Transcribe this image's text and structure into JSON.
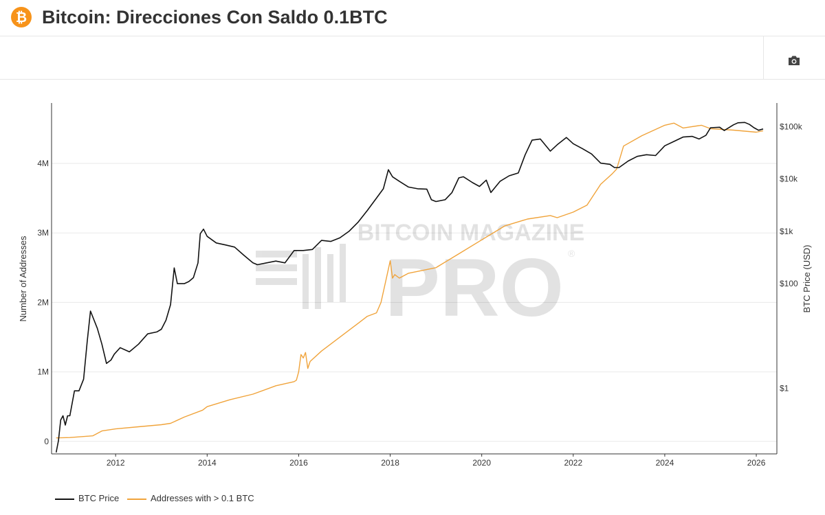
{
  "header": {
    "logo_glyph": "₿",
    "title": "Bitcoin: Direcciones Con Saldo 0.1BTC"
  },
  "toolbar": {
    "camera_icon": "camera-icon"
  },
  "watermark": {
    "line1": "BITCOIN MAGAZINE",
    "line2": "PRO",
    "mark": "®"
  },
  "colors": {
    "btc_price": "#111111",
    "addresses": "#f0a33a",
    "brand": "#f7931a"
  },
  "chart_data": {
    "type": "line",
    "title": "Bitcoin: Direcciones Con Saldo 0.1BTC",
    "xlabel": "",
    "ylabel_left": "Number of Addresses",
    "ylabel_right": "BTC Price (USD)",
    "xlim": [
      2010.6,
      2026.45
    ],
    "ylim_left": [
      -180000,
      4870000
    ],
    "ylim_right_log10": [
      -1.25,
      5.45
    ],
    "x_ticks": [
      2012,
      2014,
      2016,
      2018,
      2020,
      2022,
      2024,
      2026
    ],
    "x_tick_labels": [
      "2012",
      "2014",
      "2016",
      "2018",
      "2020",
      "2022",
      "2024",
      "2026"
    ],
    "y_left_ticks": [
      0,
      1000000,
      2000000,
      3000000,
      4000000
    ],
    "y_left_tick_labels": [
      "0",
      "1M",
      "2M",
      "3M",
      "4M"
    ],
    "y_right_ticks_log10": [
      0,
      2,
      3,
      4,
      5
    ],
    "y_right_tick_labels": [
      "$1",
      "$100",
      "$1k",
      "$10k",
      "$100k"
    ],
    "grid": true,
    "legend_position": "bottom-left",
    "series": [
      {
        "name": "BTC Price",
        "axis": "right",
        "x": [
          2010.7,
          2010.75,
          2010.8,
          2010.85,
          2010.9,
          2010.95,
          2011.0,
          2011.1,
          2011.2,
          2011.3,
          2011.38,
          2011.45,
          2011.6,
          2011.7,
          2011.8,
          2011.9,
          2011.97,
          2012.1,
          2012.3,
          2012.5,
          2012.7,
          2012.9,
          2013.0,
          2013.1,
          2013.2,
          2013.28,
          2013.35,
          2013.5,
          2013.6,
          2013.7,
          2013.8,
          2013.85,
          2013.92,
          2014.0,
          2014.2,
          2014.4,
          2014.6,
          2014.8,
          2015.0,
          2015.1,
          2015.3,
          2015.5,
          2015.7,
          2015.9,
          2016.1,
          2016.3,
          2016.5,
          2016.7,
          2016.9,
          2017.1,
          2017.3,
          2017.5,
          2017.7,
          2017.85,
          2017.96,
          2018.05,
          2018.2,
          2018.4,
          2018.6,
          2018.8,
          2018.9,
          2019.0,
          2019.2,
          2019.35,
          2019.5,
          2019.6,
          2019.8,
          2019.95,
          2020.1,
          2020.2,
          2020.4,
          2020.6,
          2020.8,
          2020.95,
          2021.1,
          2021.28,
          2021.5,
          2021.65,
          2021.85,
          2022.0,
          2022.2,
          2022.4,
          2022.6,
          2022.8,
          2022.9,
          2023.0,
          2023.2,
          2023.4,
          2023.6,
          2023.8,
          2024.0,
          2024.2,
          2024.4,
          2024.6,
          2024.75,
          2024.9,
          2025.0,
          2025.2,
          2025.3,
          2025.5,
          2025.6,
          2025.75,
          2025.85,
          2025.95,
          2026.05,
          2026.15
        ],
        "y": [
          0.06,
          0.1,
          0.25,
          0.3,
          0.2,
          0.3,
          0.3,
          0.9,
          0.9,
          1.5,
          8,
          30,
          14,
          7,
          3,
          3.5,
          4.5,
          6,
          5,
          7,
          11,
          12,
          13.5,
          20,
          40,
          200,
          100,
          100,
          110,
          130,
          250,
          900,
          1100,
          800,
          600,
          550,
          500,
          350,
          250,
          230,
          250,
          270,
          250,
          430,
          430,
          450,
          670,
          640,
          750,
          1000,
          1500,
          2500,
          4300,
          6500,
          15000,
          11000,
          9000,
          7000,
          6500,
          6400,
          4000,
          3700,
          4000,
          5500,
          10500,
          11000,
          8500,
          7200,
          9500,
          5500,
          9000,
          11500,
          13000,
          29000,
          55000,
          58000,
          34000,
          45000,
          62000,
          47000,
          38000,
          30000,
          20000,
          19000,
          16500,
          16500,
          22000,
          27000,
          29000,
          28000,
          43000,
          52000,
          63000,
          65000,
          58000,
          68000,
          95000,
          97000,
          84000,
          108000,
          118000,
          120000,
          110000,
          95000,
          85000,
          90000
        ]
      },
      {
        "name": "Addresses with > 0.1 BTC",
        "axis": "left",
        "x": [
          2010.7,
          2011.0,
          2011.5,
          2011.7,
          2012.0,
          2012.5,
          2013.0,
          2013.2,
          2013.5,
          2013.9,
          2014.0,
          2014.5,
          2015.0,
          2015.5,
          2015.9,
          2015.95,
          2016.0,
          2016.05,
          2016.1,
          2016.15,
          2016.2,
          2016.25,
          2016.5,
          2017.0,
          2017.3,
          2017.5,
          2017.7,
          2017.8,
          2017.9,
          2018.0,
          2018.05,
          2018.1,
          2018.2,
          2018.4,
          2019.0,
          2019.5,
          2020.0,
          2020.5,
          2021.0,
          2021.5,
          2021.65,
          2022.0,
          2022.3,
          2022.6,
          2022.85,
          2022.95,
          2023.1,
          2023.5,
          2024.0,
          2024.2,
          2024.4,
          2024.8,
          2025.0,
          2025.5,
          2026.0,
          2026.15
        ],
        "y": [
          50000,
          55000,
          80000,
          150000,
          180000,
          210000,
          240000,
          260000,
          350000,
          450000,
          500000,
          600000,
          680000,
          800000,
          860000,
          880000,
          1000000,
          1250000,
          1200000,
          1280000,
          1050000,
          1150000,
          1300000,
          1550000,
          1700000,
          1800000,
          1850000,
          2000000,
          2300000,
          2600000,
          2350000,
          2400000,
          2350000,
          2420000,
          2500000,
          2700000,
          2900000,
          3100000,
          3200000,
          3250000,
          3220000,
          3300000,
          3400000,
          3700000,
          3850000,
          3920000,
          4250000,
          4400000,
          4550000,
          4580000,
          4510000,
          4550000,
          4500000,
          4480000,
          4450000,
          4470000
        ]
      }
    ]
  },
  "legend": {
    "items": [
      {
        "label": "BTC Price"
      },
      {
        "label": "Addresses with > 0.1 BTC"
      }
    ]
  }
}
